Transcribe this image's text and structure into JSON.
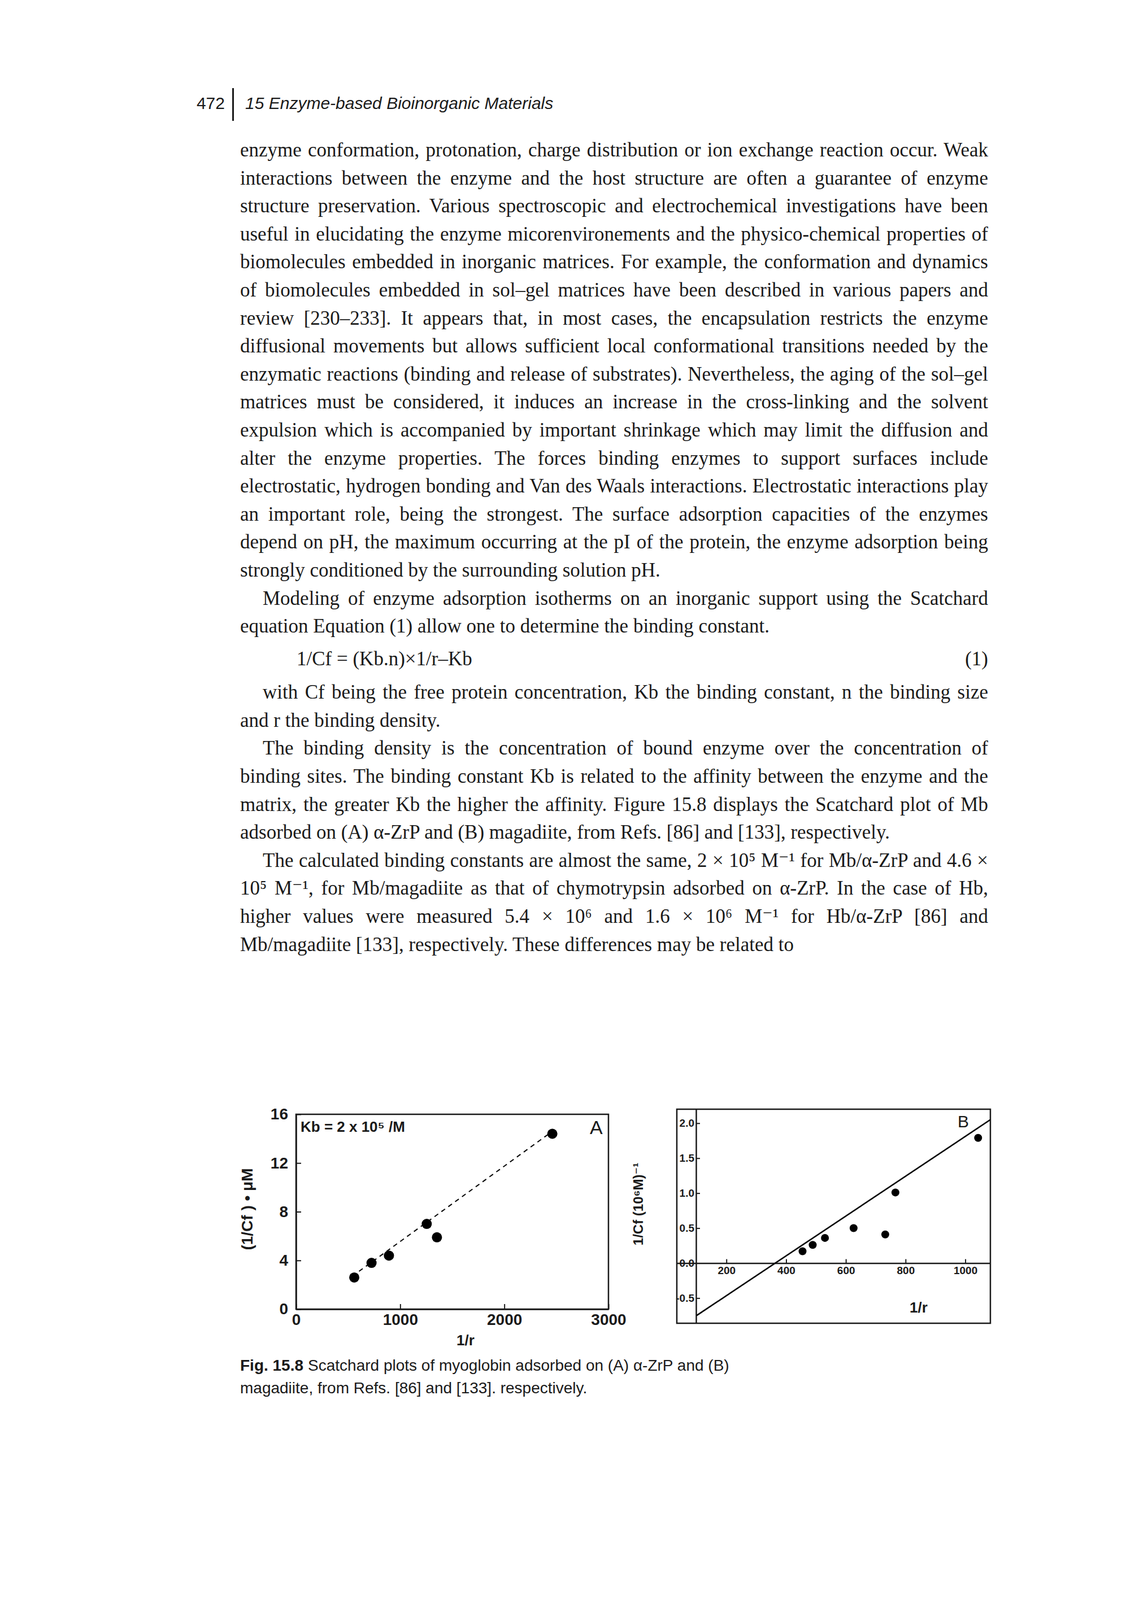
{
  "header": {
    "page_number": "472",
    "running_title": "15 Enzyme-based Bioinorganic Materials"
  },
  "paragraphs_before": [
    "enzyme conformation, protonation, charge distribution or ion exchange reaction occur. Weak interactions between the enzyme and the host structure are often a guarantee of enzyme structure preservation. Various spectroscopic and electrochemical investigations have been useful in elucidating the enzyme micorenvironements and the physico-chemical properties of biomolecules embedded in inorganic matrices. For example, the conformation and dynamics of biomolecules embedded in sol–gel matrices have been described in various papers and review [230–233]. It appears that, in most cases, the encapsulation restricts the enzyme diffusional movements but allows sufficient local conformational transitions needed by the enzymatic reactions (binding and release of substrates). Nevertheless, the aging of the sol–gel matrices must be considered, it induces an increase in the cross-linking and the solvent expulsion which is accompanied by important shrinkage which may limit the diffusion and alter the enzyme properties. The forces binding enzymes to support surfaces include electrostatic, hydrogen bonding and Van des Waals interactions. Electrostatic interactions play an important role, being the strongest. The surface adsorption capacities of the enzymes depend on pH, the maximum occurring at the pI of the protein, the enzyme adsorption being strongly conditioned by the surrounding solution pH.",
    "Modeling of enzyme adsorption isotherms on an inorganic support using the Scatchard equation Equation (1) allow one to determine the binding constant."
  ],
  "equation": {
    "text": "1/Cf = (Kb.n)×1/r–Kb",
    "number": "(1)"
  },
  "paragraphs_after": [
    "with Cf being the free protein concentration, Kb the binding constant, n the binding size and r the binding density.",
    "The binding density is the concentration of bound enzyme over the concentration of binding sites. The binding constant Kb is related to the affinity between the enzyme and the matrix, the greater Kb the higher the affinity. Figure 15.8 displays the Scatchard plot of Mb adsorbed on (A) α-ZrP and (B) magadiite, from Refs. [86] and [133], respectively.",
    "The calculated binding constants are almost the same, 2 × 10⁵ M⁻¹ for Mb/α-ZrP and 4.6 × 10⁵ M⁻¹, for Mb/magadiite as that of chymotrypsin adsorbed on α-ZrP. In the case of Hb, higher values were measured 5.4 × 10⁶ and 1.6 × 10⁶ M⁻¹ for Hb/α-ZrP [86] and Mb/magadiite [133], respectively. These differences may be related to"
  ],
  "chart_data": [
    {
      "type": "scatter",
      "title": "A",
      "annotations": [
        "Kb = 2 x 10⁵ /M"
      ],
      "x_label": "1/r",
      "y_label": "(1/Cf ) • μM",
      "xlim": [
        0,
        3000
      ],
      "ylim": [
        0,
        16
      ],
      "xticks": [
        0,
        1000,
        2000,
        3000
      ],
      "yticks": [
        0,
        4,
        8,
        12,
        16
      ],
      "series": [
        {
          "type": "scatter",
          "marker": "circle",
          "color": "#000000",
          "x": [
            559,
            725,
            892,
            1255,
            1353,
            2461
          ],
          "values": [
            2.6,
            3.8,
            4.4,
            7.0,
            5.9,
            14.4
          ]
        },
        {
          "type": "line",
          "line_style": "dashed",
          "color": "#000000",
          "x": [
            539,
            2461
          ],
          "values": [
            2.7,
            14.6
          ]
        }
      ]
    },
    {
      "type": "scatter",
      "title": "B",
      "x_label": "1/r",
      "y_label": "1/Cf (10⁶M)⁻¹",
      "xlim": [
        34,
        1084
      ],
      "ylim": [
        -0.86,
        2.2
      ],
      "xticks": [
        200,
        400,
        600,
        800,
        1000
      ],
      "yticks": [
        -0.5,
        {
          "value": 0,
          "label": "0.0"
        },
        0.5,
        {
          "value": 1,
          "label": "1.0"
        },
        1.5,
        {
          "value": 2,
          "label": "2.0"
        }
      ],
      "series": [
        {
          "type": "scatter",
          "marker": "circle",
          "color": "#000000",
          "x": [
            455,
            489,
            530,
            626,
            732,
            766,
            1043
          ],
          "values": [
            0.17,
            0.26,
            0.36,
            0.5,
            0.41,
            1.01,
            1.79
          ]
        },
        {
          "type": "line",
          "line_style": "solid",
          "color": "#000000",
          "x": [
            100,
            1084
          ],
          "values": [
            -0.75,
            2.05
          ]
        }
      ]
    }
  ],
  "caption": {
    "label": "Fig. 15.8",
    "text": "Scatchard plots of myoglobin adsorbed on (A) α-ZrP and (B) magadiite, from Refs. [86] and [133]. respectively."
  }
}
